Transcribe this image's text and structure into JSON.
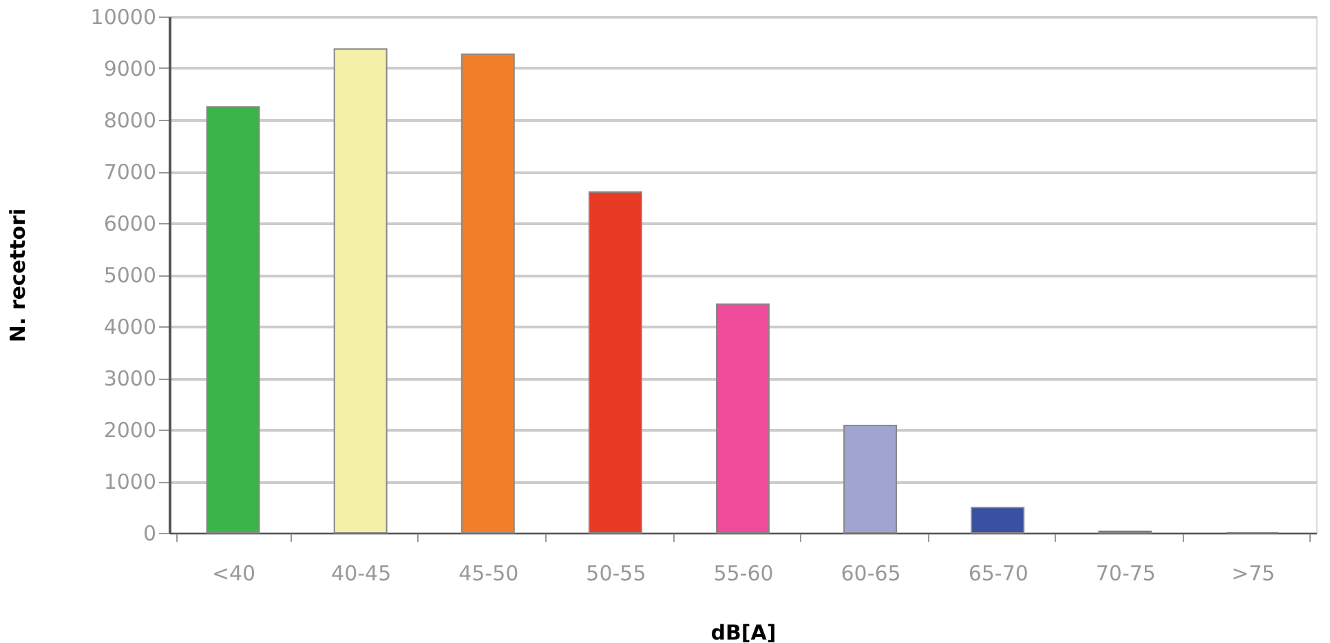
{
  "chart_data": {
    "type": "bar",
    "xlabel": "dB[A]",
    "ylabel": "N. recettori",
    "categories": [
      "<40",
      "40-45",
      "45-50",
      "50-55",
      "55-60",
      "60-65",
      "65-70",
      "70-75",
      ">75"
    ],
    "values": [
      8250,
      9370,
      9270,
      6600,
      4430,
      2080,
      490,
      30,
      0
    ],
    "colors": [
      "#3bb44a",
      "#f5f0a8",
      "#f27f2a",
      "#e93a25",
      "#ef4a9b",
      "#9fa4d0",
      "#3a50a2",
      "#1a1a1a",
      "#888888"
    ],
    "ylim": [
      0,
      10000
    ],
    "yticks": [
      0,
      1000,
      2000,
      3000,
      4000,
      5000,
      6000,
      7000,
      8000,
      9000,
      10000
    ],
    "grid": "y"
  }
}
